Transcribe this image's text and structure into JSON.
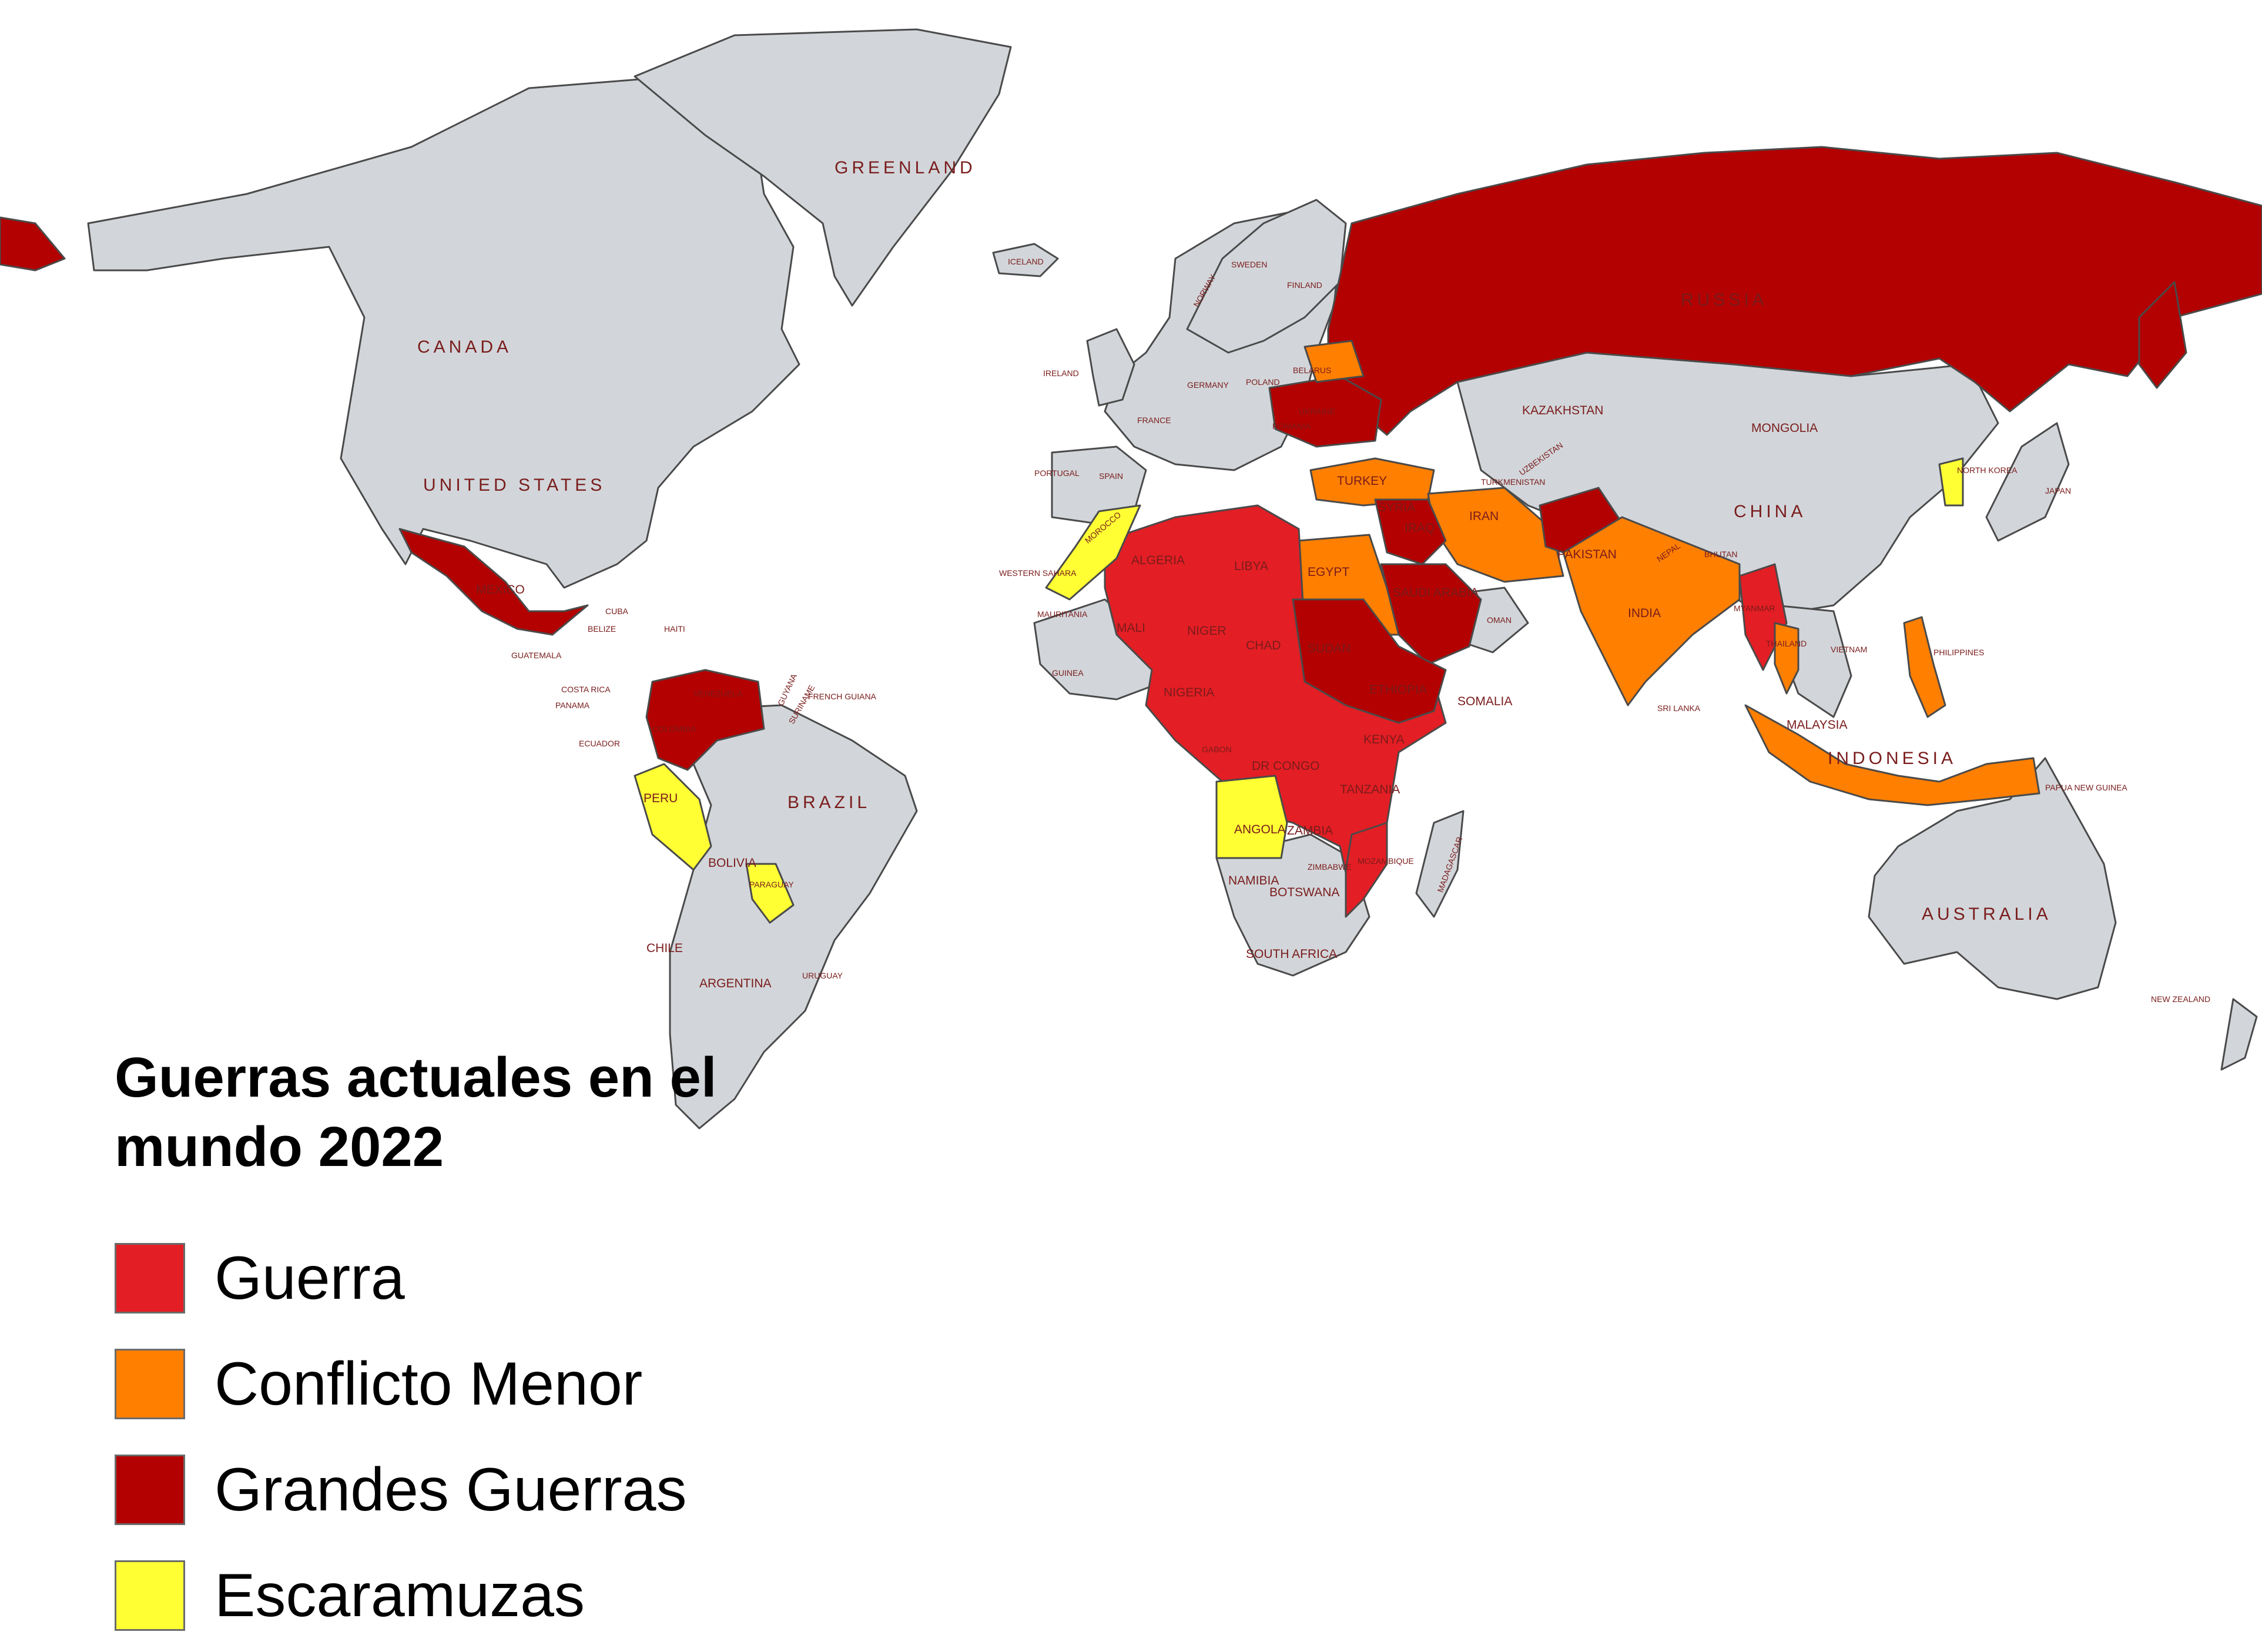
{
  "legend": {
    "title": "Guerras actuales en el mundo 2022",
    "items": [
      {
        "label": "Guerra",
        "color": "#e31e24"
      },
      {
        "label": "Conflicto Menor",
        "color": "#ff7f00"
      },
      {
        "label": "Grandes Guerras",
        "color": "#b30000"
      },
      {
        "label": "Escaramuzas",
        "color": "#ffff33"
      }
    ]
  },
  "colors": {
    "land": "#d2d6da",
    "border": "#4a4a4a",
    "label": "#7a1c1c"
  },
  "labels": {
    "greenland": "GREENLAND",
    "canada": "CANADA",
    "united_states": "UNITED STATES",
    "russia": "RUSSIA",
    "kazakhstan": "KAZAKHSTAN",
    "mongolia": "MONGOLIA",
    "china": "CHINA",
    "brazil": "BRAZIL",
    "australia": "AUSTRALIA",
    "india": "INDIA",
    "iran": "IRAN",
    "turkey": "TURKEY",
    "egypt": "EGYPT",
    "algeria": "ALGERIA",
    "libya": "LIBYA",
    "niger": "NIGER",
    "mali": "MALI",
    "chad": "CHAD",
    "sudan": "SUDAN",
    "ethiopia": "ETHIOPIA",
    "somalia": "SOMALIA",
    "kenya": "KENYA",
    "tanzania": "TANZANIA",
    "dr_congo": "DR CONGO",
    "angola": "ANGOLA",
    "zambia": "ZAMBIA",
    "namibia": "NAMIBIA",
    "botswana": "BOTSWANA",
    "south_africa": "SOUTH AFRICA",
    "madagascar": "MADAGASCAR",
    "nigeria": "NIGERIA",
    "mauritania": "MAURITANIA",
    "morocco": "MOROCCO",
    "western_sahara": "WESTERN SAHARA",
    "saudi_arabia": "SAUDI ARABIA",
    "iraq": "IRAQ",
    "syria": "SYRIA",
    "pakistan": "PAKISTAN",
    "oman": "OMAN",
    "mexico": "MEXICO",
    "cuba": "CUBA",
    "venezuela": "VENEZUELA",
    "colombia": "COLOMBIA",
    "peru": "PERU",
    "ecuador": "ECUADOR",
    "bolivia": "BOLIVIA",
    "paraguay": "PARAGUAY",
    "chile": "CHILE",
    "argentina": "ARGENTINA",
    "uruguay": "URUGUAY",
    "guyana": "GUYANA",
    "suriname": "SURINAME",
    "french_guiana": "FRENCH GUIANA",
    "thailand": "THAILAND",
    "philippines": "PHILIPPINES",
    "indonesia": "INDONESIA",
    "malaysia": "MALAYSIA",
    "vietnam": "VIETNAM",
    "papua_new_guinea": "PAPUA NEW GUINEA",
    "japan": "JAPAN",
    "north_korea": "NORTH KOREA",
    "new_zealand": "NEW ZEALAND",
    "iceland": "ICELAND",
    "sweden": "SWEDEN",
    "finland": "FINLAND",
    "norway": "NORWAY",
    "ireland": "IRELAND",
    "france": "FRANCE",
    "spain": "SPAIN",
    "portugal": "PORTUGAL",
    "germany": "GERMANY",
    "poland": "POLAND",
    "belarus": "BELARUS",
    "romania": "ROMANIA",
    "ukraine": "UKRAINE",
    "uzbekistan": "UZBEKISTAN",
    "turkmenistan": "TURKMENISTAN",
    "myanmar": "MYANMAR",
    "sri_lanka": "SRI LANKA",
    "bhutan": "BHUTAN",
    "nepal": "NEPAL",
    "gabon": "GABON",
    "guinea": "GUINEA",
    "zimbabwe": "ZIMBABWE",
    "mozambique": "MOZAMBIQUE",
    "belize": "BELIZE",
    "guatemala": "GUATEMALA",
    "panama": "PANAMA",
    "costa_rica": "COSTA RICA",
    "haiti": "HAITI"
  }
}
